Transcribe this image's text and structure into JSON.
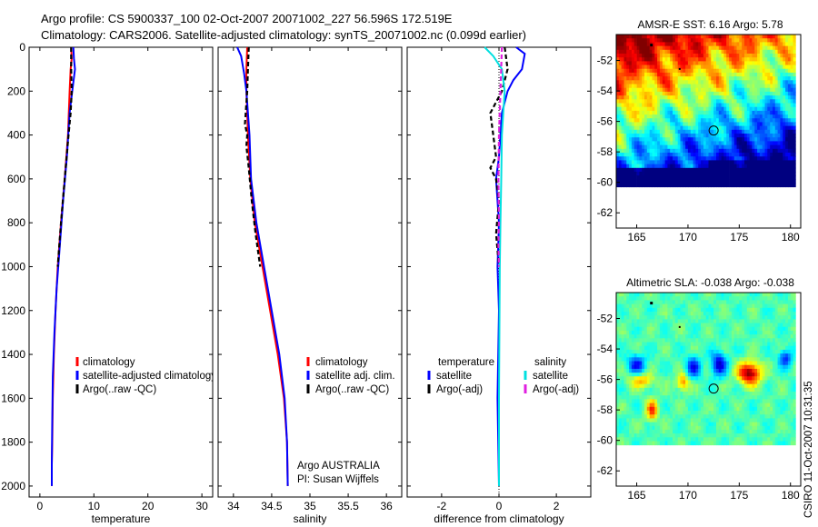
{
  "header": {
    "line1": "Argo profile: CS 5900337_100 02-Oct-2007 20071002_227 56.596S 172.519E",
    "line2": "Climatology: CARS2006. Satellite-adjusted climatology: synTS_20071002.nc (0.099d earlier)"
  },
  "footer": {
    "argo_label": "Argo AUSTRALIA",
    "pi_label": "PI: Susan Wijffels",
    "stamp": "CSIRO 11-Oct-2007 10:31:35"
  },
  "chart_data": [
    {
      "id": "temperature",
      "type": "line",
      "xlabel": "temperature",
      "ylabel": "",
      "xlim": [
        -2,
        32
      ],
      "ylim": [
        2050,
        0
      ],
      "xticks": [
        0,
        10,
        20,
        30
      ],
      "yticks": [
        0,
        200,
        400,
        600,
        800,
        1000,
        1200,
        1400,
        1600,
        1800,
        2000
      ],
      "legend": [
        "climatology",
        "satellite-adjusted climatology",
        "Argo(..raw -QC)"
      ],
      "series": [
        {
          "name": "climatology",
          "color": "#ff0000",
          "x": [
            5.8,
            5.9,
            5.7,
            5.5,
            5.2,
            4.6,
            3.9,
            3.3,
            2.9,
            2.6,
            2.4,
            2.3,
            2.2,
            2.2
          ],
          "y": [
            0,
            50,
            100,
            200,
            400,
            600,
            800,
            1000,
            1200,
            1400,
            1600,
            1800,
            1900,
            2000
          ]
        },
        {
          "name": "satellite-adjusted climatology",
          "color": "#0000ff",
          "x": [
            6.2,
            6.3,
            6.5,
            6.0,
            5.5,
            5.0,
            4.3,
            3.7,
            3.1,
            2.7,
            2.4,
            2.3,
            2.2,
            2.2
          ],
          "y": [
            0,
            50,
            100,
            200,
            300,
            500,
            700,
            900,
            1100,
            1300,
            1500,
            1700,
            1900,
            2000
          ]
        },
        {
          "name": "Argo(..raw -QC)",
          "color": "#000000",
          "dash": "5,3",
          "x": [
            5.8,
            5.8,
            5.9,
            5.7,
            5.3,
            4.6,
            3.9,
            3.3
          ],
          "y": [
            0,
            100,
            200,
            300,
            400,
            600,
            800,
            1000
          ]
        }
      ]
    },
    {
      "id": "salinity",
      "type": "line",
      "xlabel": "salinity",
      "ylabel": "",
      "xlim": [
        33.8,
        36.2
      ],
      "ylim": [
        2050,
        0
      ],
      "xticks": [
        34,
        34.5,
        35,
        35.5,
        36
      ],
      "yticks": [
        0,
        200,
        400,
        600,
        800,
        1000,
        1200,
        1400,
        1600,
        1800,
        2000
      ],
      "legend": [
        "climatology",
        "satellite adj. clim.",
        "Argo(..raw -QC)"
      ],
      "series": [
        {
          "name": "climatology",
          "color": "#ff0000",
          "x": [
            34.18,
            34.17,
            34.17,
            34.18,
            34.19,
            34.22,
            34.28,
            34.38,
            34.48,
            34.58,
            34.66,
            34.7,
            34.71
          ],
          "y": [
            0,
            100,
            200,
            300,
            400,
            600,
            800,
            1000,
            1200,
            1400,
            1600,
            1800,
            2000
          ]
        },
        {
          "name": "satellite adj. clim.",
          "color": "#0000ff",
          "x": [
            34.05,
            34.1,
            34.14,
            34.17,
            34.19,
            34.21,
            34.23,
            34.3,
            34.4,
            34.5,
            34.6,
            34.67,
            34.7,
            34.71
          ],
          "y": [
            0,
            40,
            120,
            200,
            300,
            400,
            600,
            800,
            1000,
            1200,
            1400,
            1600,
            1800,
            2000
          ]
        },
        {
          "name": "Argo(..raw -QC)",
          "color": "#000000",
          "dash": "5,3",
          "x": [
            34.2,
            34.19,
            34.18,
            34.15,
            34.18,
            34.17,
            34.2,
            34.24,
            34.29,
            34.35
          ],
          "y": [
            0,
            100,
            200,
            350,
            400,
            450,
            550,
            700,
            850,
            1000
          ]
        }
      ]
    },
    {
      "id": "difference",
      "type": "line",
      "xlabel": "difference from climatology",
      "ylabel": "",
      "xlim": [
        -3.2,
        3.2
      ],
      "ylim": [
        2050,
        0
      ],
      "xticks": [
        -2,
        0,
        2
      ],
      "yticks": [
        0,
        200,
        400,
        600,
        800,
        1000,
        1200,
        1400,
        1600,
        1800,
        2000
      ],
      "legend_groups": [
        {
          "title": "temperature",
          "items": [
            "satellite",
            "Argo(-adj)"
          ]
        },
        {
          "title": "salinity",
          "items": [
            "satellite",
            "Argo(-adj)"
          ]
        }
      ],
      "series": [
        {
          "name": "temperature satellite",
          "color": "#0000ff",
          "x": [
            0.6,
            0.9,
            0.8,
            0.5,
            0.3,
            0.1,
            0.05,
            0.0,
            -0.1,
            0.0,
            -0.05,
            0.0,
            -0.05,
            0.0
          ],
          "y": [
            0,
            30,
            100,
            150,
            200,
            300,
            400,
            500,
            600,
            800,
            1000,
            1200,
            1600,
            2000
          ]
        },
        {
          "name": "temperature Argo(-adj)",
          "color": "#000000",
          "dash": "5,3",
          "x": [
            0.2,
            0.3,
            0.1,
            -0.3,
            -0.2,
            -0.1,
            -0.3,
            -0.1,
            0.0,
            -0.1,
            0.0
          ],
          "y": [
            0,
            100,
            200,
            300,
            400,
            500,
            550,
            600,
            700,
            850,
            1000
          ]
        },
        {
          "name": "salinity satellite",
          "color": "#00e0e0",
          "x": [
            -0.5,
            -0.2,
            0.1,
            0.2,
            0.15,
            0.1,
            0.08,
            0.05,
            0.03,
            0.02,
            0.01,
            0.0,
            0.0
          ],
          "y": [
            0,
            40,
            100,
            200,
            300,
            400,
            600,
            800,
            1000,
            1200,
            1400,
            1600,
            2000
          ]
        },
        {
          "name": "salinity Argo(-adj)",
          "color": "#e020e0",
          "dash": "5,3",
          "x": [
            0.1,
            0.05,
            0.0,
            -0.02,
            0.0,
            -0.02,
            0.0
          ],
          "y": [
            0,
            200,
            400,
            600,
            800,
            900,
            1000
          ]
        }
      ]
    },
    {
      "id": "sst_map",
      "type": "heatmap",
      "title": "AMSR-E SST: 6.16 Argo: 5.78",
      "xlim": [
        163,
        181
      ],
      "ylim": [
        -63,
        -50.3
      ],
      "data_ylim": [
        -60.1,
        -50.3
      ],
      "xticks": [
        165,
        170,
        175,
        180
      ],
      "yticks": [
        -52,
        -54,
        -56,
        -58,
        -60,
        -62
      ],
      "marker": {
        "lon": 172.5,
        "lat": -56.6
      },
      "colormap": "jet"
    },
    {
      "id": "sla_map",
      "type": "heatmap",
      "title": "Altimetric SLA: -0.038 Argo: -0.038",
      "xlim": [
        163,
        181
      ],
      "ylim": [
        -63,
        -50.3
      ],
      "data_ylim": [
        -60.1,
        -50.3
      ],
      "xticks": [
        165,
        170,
        175,
        180
      ],
      "yticks": [
        -52,
        -54,
        -56,
        -58,
        -60,
        -62
      ],
      "marker": {
        "lon": 172.5,
        "lat": -56.6
      },
      "colormap": "jet"
    }
  ]
}
